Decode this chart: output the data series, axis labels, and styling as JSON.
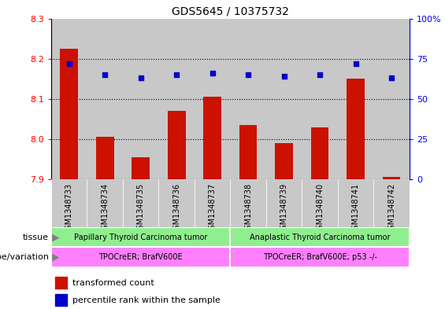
{
  "title": "GDS5645 / 10375732",
  "samples": [
    "GSM1348733",
    "GSM1348734",
    "GSM1348735",
    "GSM1348736",
    "GSM1348737",
    "GSM1348738",
    "GSM1348739",
    "GSM1348740",
    "GSM1348741",
    "GSM1348742"
  ],
  "transformed_count": [
    8.225,
    8.005,
    7.955,
    8.07,
    8.105,
    8.035,
    7.99,
    8.03,
    8.15,
    7.905
  ],
  "percentile_rank": [
    72,
    65,
    63,
    65,
    66,
    65,
    64,
    65,
    72,
    63
  ],
  "ylim_left": [
    7.9,
    8.3
  ],
  "ylim_right": [
    0,
    100
  ],
  "yticks_left": [
    7.9,
    8.0,
    8.1,
    8.2,
    8.3
  ],
  "yticks_right": [
    0,
    25,
    50,
    75,
    100
  ],
  "ytick_labels_right": [
    "0",
    "25",
    "50",
    "75",
    "100%"
  ],
  "grid_values": [
    8.0,
    8.1,
    8.2
  ],
  "bar_color": "#cc1100",
  "dot_color": "#0000cc",
  "band_color": "#c8c8c8",
  "tissue_groups": [
    {
      "label": "Papillary Thyroid Carcinoma tumor",
      "start": 0,
      "end": 5,
      "color": "#90ee90"
    },
    {
      "label": "Anaplastic Thyroid Carcinoma tumor",
      "start": 5,
      "end": 10,
      "color": "#90ee90"
    }
  ],
  "genotype_groups": [
    {
      "label": "TPOCreER; BrafV600E",
      "start": 0,
      "end": 5,
      "color": "#ff80ff"
    },
    {
      "label": "TPOCreER; BrafV600E; p53 -/-",
      "start": 5,
      "end": 10,
      "color": "#ff80ff"
    }
  ],
  "tissue_label": "tissue",
  "genotype_label": "genotype/variation",
  "bar_width": 0.5,
  "dot_size": 25,
  "title_fontsize": 10,
  "axis_fontsize": 8,
  "tick_fontsize": 7,
  "label_fontsize": 8,
  "legend_fontsize": 8
}
